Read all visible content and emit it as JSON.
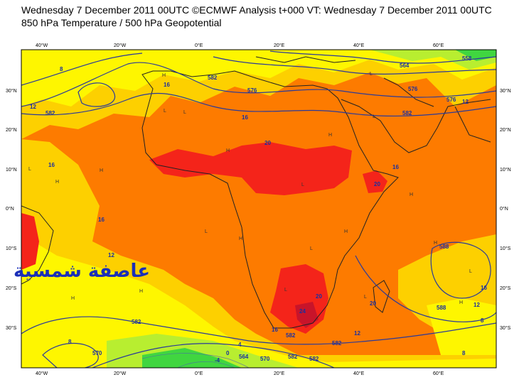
{
  "header": {
    "line1": "Wednesday 7 December 2011 00UTC ©ECMWF Analysis t+000 VT: Wednesday 7 December 2011 00UTC",
    "line2": "850 hPa Temperature / 500 hPa Geopotential"
  },
  "axes": {
    "lon_labels": [
      "40°W",
      "20°W",
      "0°E",
      "20°E",
      "40°E",
      "60°E"
    ],
    "lat_labels": [
      "30°N",
      "20°N",
      "10°N",
      "0°N",
      "10°S",
      "20°S",
      "30°S"
    ]
  },
  "isotherm_labels": [
    "8",
    "12",
    "16",
    "16",
    "20",
    "16",
    "20",
    "16",
    "12",
    "16",
    "8",
    "12",
    "4",
    "0",
    "-4",
    "8",
    "16",
    "12",
    "8",
    "12",
    "20",
    "20",
    "24",
    "16"
  ],
  "geopotential_labels": [
    "582",
    "582",
    "576",
    "564",
    "576",
    "576",
    "582",
    "588",
    "582",
    "588",
    "582",
    "582",
    "570",
    "582",
    "582",
    "558",
    "564",
    "570"
  ],
  "pressure_marks": [
    "H",
    "H",
    "L",
    "H",
    "L",
    "H",
    "L",
    "H",
    "L",
    "H",
    "L",
    "H",
    "L",
    "H",
    "L",
    "H",
    "L",
    "H",
    "L",
    "H",
    "L",
    "L",
    "H"
  ],
  "watermark": "عاصفة شمسية",
  "colors": {
    "band_8_12": "#fef600",
    "band_12_16": "#fdd000",
    "band_16_20": "#fd7b00",
    "band_20_24": "#f4241a",
    "band_24_plus": "#c8142a",
    "band_0_8": "#b8ee30",
    "band_cold": "#40d640",
    "contour": "#2a3a9a",
    "coast": "#222222"
  }
}
